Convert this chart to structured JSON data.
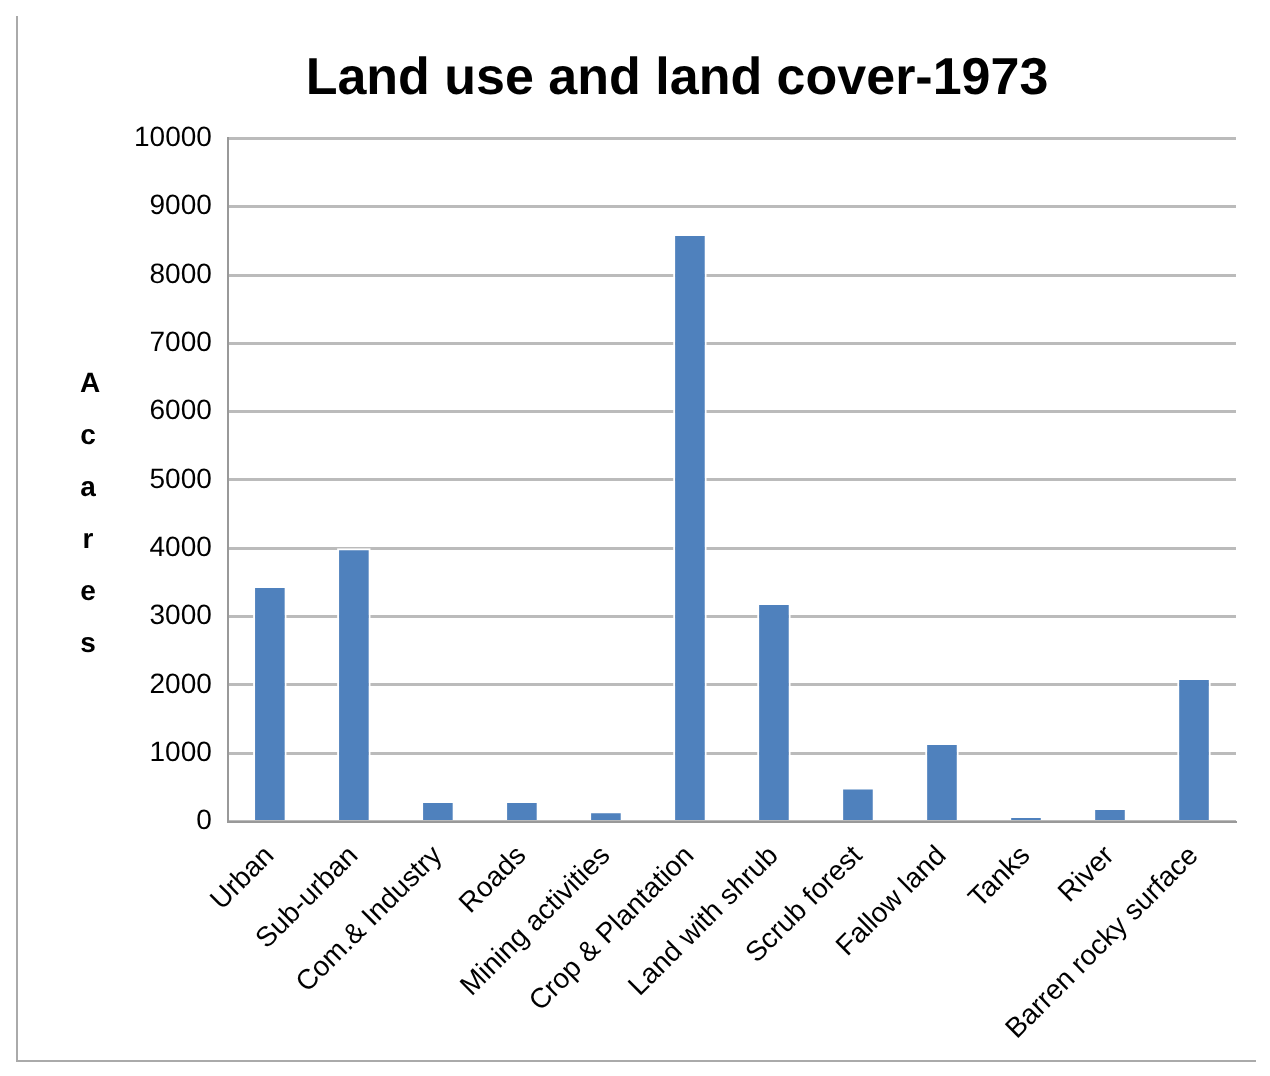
{
  "chart_data": {
    "type": "bar",
    "title": "Land use and land cover-1973",
    "ylabel": "Acares",
    "categories": [
      "Urban",
      "Sub-urban",
      "Com.& Industry",
      "Roads",
      "Mining activities",
      "Crop & Plantation",
      "Land with shrub",
      "Scrub forest",
      "Fallow land",
      "Tanks",
      "River",
      "Barren rocky surface"
    ],
    "values": [
      3450,
      4000,
      300,
      300,
      150,
      8600,
      3200,
      500,
      1150,
      80,
      200,
      2100
    ],
    "color": "#4f81bd",
    "ylim": [
      0,
      10000
    ],
    "yticks": [
      0,
      1000,
      2000,
      3000,
      4000,
      5000,
      6000,
      7000,
      8000,
      9000,
      10000
    ],
    "grid": "y",
    "legend": false
  }
}
